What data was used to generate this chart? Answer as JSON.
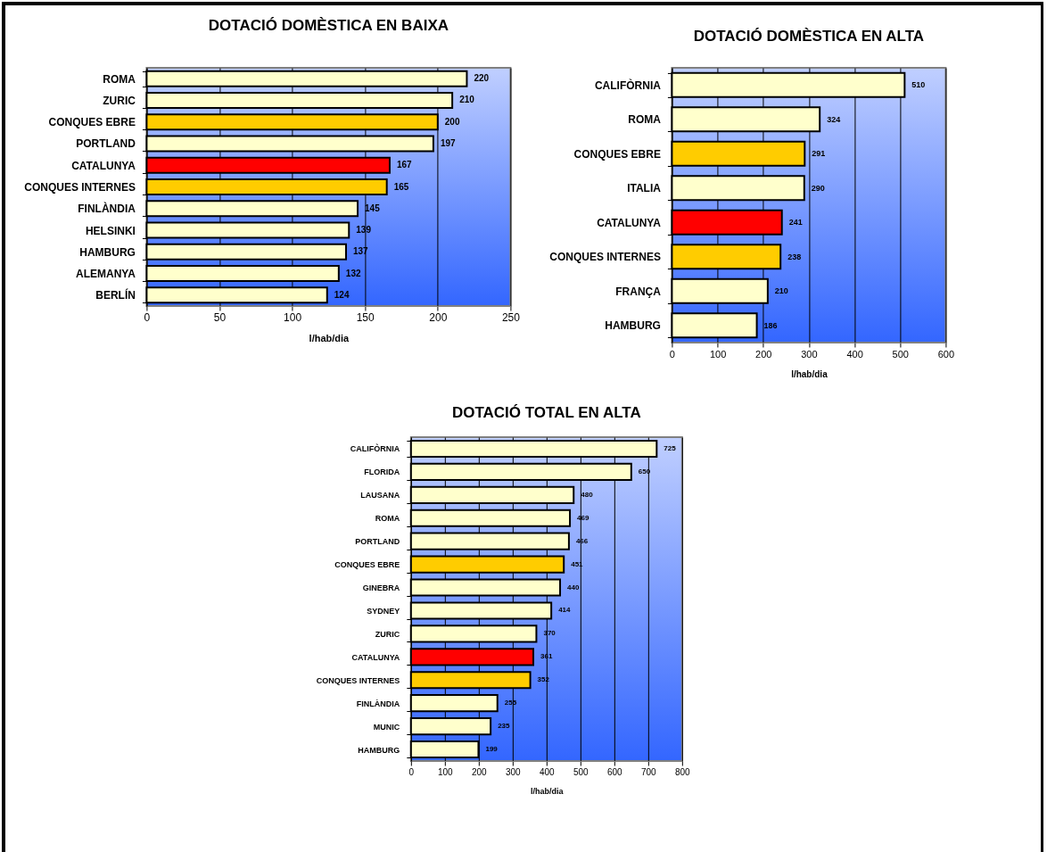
{
  "chart_data": [
    {
      "type": "bar",
      "orientation": "horizontal",
      "title": "DOTACIÓ DOMÈSTICA EN BAIXA",
      "xlabel": "l/hab/dia",
      "categories": [
        "ROMA",
        "ZURIC",
        "CONQUES EBRE",
        "PORTLAND",
        "CATALUNYA",
        "CONQUES INTERNES",
        "FINLÀNDIA",
        "HELSINKI",
        "HAMBURG",
        "ALEMANYA",
        "BERLÍN"
      ],
      "values": [
        220,
        210,
        200,
        197,
        167,
        165,
        145,
        139,
        137,
        132,
        124
      ],
      "colors": [
        "#ffffcc",
        "#ffffcc",
        "#ffcc00",
        "#ffffcc",
        "#ff0000",
        "#ffcc00",
        "#ffffcc",
        "#ffffcc",
        "#ffffcc",
        "#ffffcc",
        "#ffffcc"
      ],
      "xlim": [
        0,
        250
      ],
      "xticks": [
        0,
        50,
        100,
        150,
        200,
        250
      ],
      "grid": "x",
      "data_labels": true
    },
    {
      "type": "bar",
      "orientation": "horizontal",
      "title": "DOTACIÓ DOMÈSTICA EN ALTA",
      "xlabel": "l/hab/dia",
      "categories": [
        "CALIFÒRNIA",
        "ROMA",
        "CONQUES EBRE",
        "ITALIA",
        "CATALUNYA",
        "CONQUES INTERNES",
        "FRANÇA",
        "HAMBURG"
      ],
      "values": [
        510,
        324,
        291,
        290,
        241,
        238,
        210,
        186
      ],
      "colors": [
        "#ffffcc",
        "#ffffcc",
        "#ffcc00",
        "#ffffcc",
        "#ff0000",
        "#ffcc00",
        "#ffffcc",
        "#ffffcc"
      ],
      "xlim": [
        0,
        600
      ],
      "xticks": [
        0,
        100,
        200,
        300,
        400,
        500,
        600
      ],
      "grid": "x",
      "data_labels": true
    },
    {
      "type": "bar",
      "orientation": "horizontal",
      "title": "DOTACIÓ TOTAL EN ALTA",
      "xlabel": "l/hab/dia",
      "categories": [
        "CALIFÒRNIA",
        "FLORIDA",
        "LAUSANA",
        "ROMA",
        "PORTLAND",
        "CONQUES EBRE",
        "GINEBRA",
        "SYDNEY",
        "ZURIC",
        "CATALUNYA",
        "CONQUES INTERNES",
        "FINLÀNDIA",
        "MUNIC",
        "HAMBURG"
      ],
      "values": [
        725,
        650,
        480,
        469,
        466,
        451,
        440,
        414,
        370,
        361,
        352,
        255,
        235,
        199
      ],
      "colors": [
        "#ffffcc",
        "#ffffcc",
        "#ffffcc",
        "#ffffcc",
        "#ffffcc",
        "#ffcc00",
        "#ffffcc",
        "#ffffcc",
        "#ffffcc",
        "#ff0000",
        "#ffcc00",
        "#ffffcc",
        "#ffffcc",
        "#ffffcc"
      ],
      "xlim": [
        0,
        800
      ],
      "xticks": [
        0,
        100,
        200,
        300,
        400,
        500,
        600,
        700,
        800
      ],
      "grid": "x",
      "data_labels": true
    }
  ]
}
